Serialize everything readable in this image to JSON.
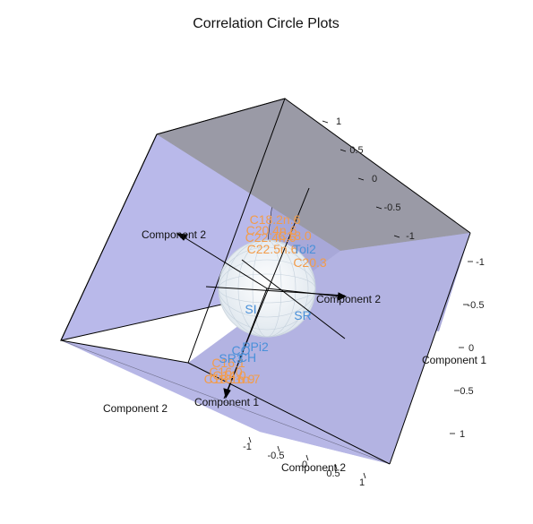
{
  "chart_data": {
    "type": "scatter",
    "title": "Correlation Circle Plots",
    "axis_labels": [
      "Component 1",
      "Component 2",
      "Component 2",
      "Component 2",
      "Component 2",
      "Component 1",
      "Component 1"
    ],
    "ticks": {
      "right_top": [
        "1",
        "0.5",
        "0",
        "-0.5",
        "-1"
      ],
      "right_mid": [
        "-1",
        "-0.5",
        "0",
        "0.5",
        "1"
      ],
      "bottom": [
        "-1",
        "-0.5",
        "0",
        "0.5",
        "1"
      ]
    },
    "colors": {
      "group_orange": "#f39c4a",
      "group_blue": "#4a90d9",
      "cube_face": "#b9b9ea",
      "cube_top": "#9a9aa6",
      "sphere": "#e6ecf2"
    },
    "series": [
      {
        "color": "#f39c4a",
        "labels": [
          "C18.2n.6",
          "C20.4n.6",
          "C22.4n.6",
          "C18.0",
          "C22.5n.6",
          "C20.3",
          "C16.1",
          "C16.0",
          "C18.1n.9",
          "C18.1n.7",
          "C14.0"
        ]
      },
      {
        "color": "#4a90d9",
        "labels": [
          "Toi2",
          "SI",
          "SR",
          "PPi2",
          "CO",
          "CH",
          "SR3"
        ]
      }
    ]
  }
}
